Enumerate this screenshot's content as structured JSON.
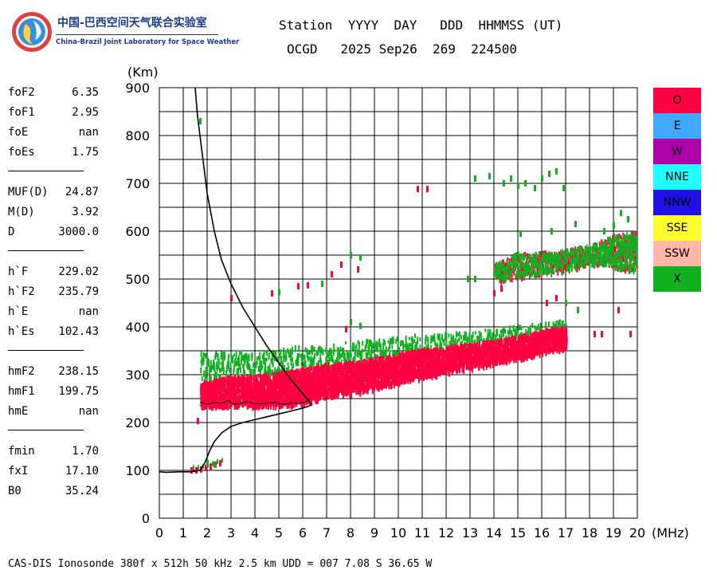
{
  "logo": {
    "cn_text": "中国-巴西空间天气联合实验室",
    "en_text": "China-Brazil Joint Laboratory for Space Weather"
  },
  "header": {
    "line1": "Station  YYYY  DAY   DDD  HHMMSS (UT)",
    "line2": "OCGD   2025 Sep26  269  224500"
  },
  "params": [
    {
      "label": "foF2",
      "value": "6.35"
    },
    {
      "label": "foF1",
      "value": "2.95"
    },
    {
      "label": "foE",
      "value": "nan"
    },
    {
      "label": "foEs",
      "value": "1.75"
    },
    {
      "sep": true
    },
    {
      "label": "MUF(D)",
      "value": "24.87"
    },
    {
      "label": "M(D)",
      "value": "3.92"
    },
    {
      "label": "D",
      "value": "3000.0"
    },
    {
      "sep": true
    },
    {
      "label": "h`F",
      "value": "229.02"
    },
    {
      "label": "h`F2",
      "value": "235.79"
    },
    {
      "label": "h`E",
      "value": "nan"
    },
    {
      "label": "h`Es",
      "value": "102.43"
    },
    {
      "sep": true
    },
    {
      "label": "hmF2",
      "value": "238.15"
    },
    {
      "label": "hmF1",
      "value": "199.75"
    },
    {
      "label": "hmE",
      "value": "nan"
    },
    {
      "sep": true
    },
    {
      "label": "fmin",
      "value": "1.70"
    },
    {
      "label": "fxI",
      "value": "17.10"
    },
    {
      "label": "B0",
      "value": "35.24"
    }
  ],
  "legend": [
    {
      "label": "O",
      "color": "#ff0040"
    },
    {
      "label": "E",
      "color": "#40a8ff"
    },
    {
      "label": "W",
      "color": "#b000a8"
    },
    {
      "label": "NNE",
      "color": "#20ffff"
    },
    {
      "label": "NNW",
      "color": "#2010e8"
    },
    {
      "label": "SSE",
      "color": "#ffff30"
    },
    {
      "label": "SSW",
      "color": "#ffb8a8"
    },
    {
      "label": "X",
      "color": "#10b020"
    }
  ],
  "footer": "CAS-DIS Ionosonde 380f x 512h 50 kHz 2.5 km UDD = 007 7.08 S 36.65 W",
  "chart_data": {
    "type": "scatter",
    "xlabel": "(MHz)",
    "ylabel": "(Km)",
    "xlim": [
      0,
      20
    ],
    "ylim": [
      0,
      900
    ],
    "x_ticks": [
      0,
      1,
      2,
      3,
      4,
      5,
      6,
      7,
      8,
      9,
      10,
      11,
      12,
      13,
      14,
      15,
      16,
      17,
      18,
      19,
      20
    ],
    "y_ticks": [
      0,
      100,
      200,
      300,
      400,
      500,
      600,
      700,
      800,
      900
    ],
    "grid": true,
    "legend_position": "right",
    "o_trace_band": [
      [
        1.7,
        240,
        285
      ],
      [
        2.0,
        240,
        290
      ],
      [
        2.5,
        238,
        295
      ],
      [
        3.0,
        238,
        300
      ],
      [
        3.5,
        238,
        300
      ],
      [
        4.0,
        238,
        302
      ],
      [
        4.5,
        238,
        305
      ],
      [
        5.0,
        240,
        308
      ],
      [
        5.5,
        242,
        312
      ],
      [
        6.0,
        246,
        316
      ],
      [
        6.5,
        252,
        322
      ],
      [
        7.0,
        258,
        326
      ],
      [
        7.5,
        262,
        328
      ],
      [
        8.0,
        266,
        330
      ],
      [
        8.5,
        270,
        334
      ],
      [
        9.0,
        276,
        338
      ],
      [
        9.5,
        282,
        342
      ],
      [
        10.0,
        288,
        348
      ],
      [
        10.5,
        294,
        352
      ],
      [
        11.0,
        300,
        356
      ],
      [
        11.5,
        304,
        358
      ],
      [
        12.0,
        310,
        362
      ],
      [
        12.5,
        315,
        366
      ],
      [
        13.0,
        318,
        368
      ],
      [
        13.5,
        323,
        372
      ],
      [
        14.0,
        328,
        376
      ],
      [
        14.5,
        333,
        380
      ],
      [
        15.0,
        338,
        386
      ],
      [
        15.5,
        343,
        390
      ],
      [
        16.0,
        350,
        396
      ],
      [
        16.5,
        356,
        400
      ],
      [
        17.0,
        360,
        404
      ]
    ],
    "x_trace_band": [
      [
        1.7,
        250,
        350
      ],
      [
        3.0,
        250,
        350
      ],
      [
        4.5,
        255,
        355
      ],
      [
        5.5,
        262,
        362
      ],
      [
        6.5,
        266,
        362
      ],
      [
        8.0,
        272,
        372
      ],
      [
        9.5,
        288,
        380
      ],
      [
        11.0,
        302,
        388
      ],
      [
        12.5,
        320,
        392
      ],
      [
        14.0,
        334,
        398
      ],
      [
        15.5,
        350,
        410
      ],
      [
        17.0,
        368,
        418
      ]
    ],
    "upper_trace": [
      [
        14.0,
        500,
        535
      ],
      [
        14.5,
        505,
        545
      ],
      [
        15.0,
        510,
        560
      ],
      [
        15.5,
        512,
        555
      ],
      [
        16.0,
        515,
        560
      ],
      [
        16.5,
        518,
        560
      ],
      [
        17.0,
        525,
        565
      ],
      [
        17.5,
        530,
        570
      ],
      [
        18.0,
        535,
        575
      ],
      [
        18.5,
        535,
        585
      ],
      [
        19.0,
        530,
        595
      ],
      [
        19.5,
        525,
        600
      ],
      [
        20.0,
        520,
        605
      ]
    ],
    "es_trace": [
      [
        1.3,
        100
      ],
      [
        1.5,
        100
      ],
      [
        1.7,
        102
      ],
      [
        1.9,
        105
      ],
      [
        2.1,
        108
      ],
      [
        2.3,
        112
      ],
      [
        2.5,
        115
      ]
    ],
    "scattered_points": [
      {
        "x": 1.7,
        "y": 830,
        "pol": "X"
      },
      {
        "x": 3.0,
        "y": 460,
        "pol": "O"
      },
      {
        "x": 4.7,
        "y": 470,
        "pol": "O"
      },
      {
        "x": 5.0,
        "y": 472,
        "pol": "X"
      },
      {
        "x": 5.8,
        "y": 485,
        "pol": "O"
      },
      {
        "x": 6.2,
        "y": 487,
        "pol": "O"
      },
      {
        "x": 6.8,
        "y": 490,
        "pol": "X"
      },
      {
        "x": 7.2,
        "y": 510,
        "pol": "O"
      },
      {
        "x": 7.6,
        "y": 530,
        "pol": "O"
      },
      {
        "x": 8.0,
        "y": 550,
        "pol": "X"
      },
      {
        "x": 8.4,
        "y": 545,
        "pol": "X"
      },
      {
        "x": 8.3,
        "y": 520,
        "pol": "O"
      },
      {
        "x": 8.0,
        "y": 410,
        "pol": "X"
      },
      {
        "x": 8.4,
        "y": 402,
        "pol": "X"
      },
      {
        "x": 7.8,
        "y": 395,
        "pol": "O"
      },
      {
        "x": 10.8,
        "y": 688,
        "pol": "O"
      },
      {
        "x": 11.2,
        "y": 688,
        "pol": "O"
      },
      {
        "x": 13.2,
        "y": 710,
        "pol": "X"
      },
      {
        "x": 13.8,
        "y": 715,
        "pol": "X"
      },
      {
        "x": 14.4,
        "y": 700,
        "pol": "X"
      },
      {
        "x": 14.7,
        "y": 710,
        "pol": "X"
      },
      {
        "x": 15.0,
        "y": 695,
        "pol": "X"
      },
      {
        "x": 15.3,
        "y": 700,
        "pol": "X"
      },
      {
        "x": 15.7,
        "y": 690,
        "pol": "X"
      },
      {
        "x": 16.0,
        "y": 710,
        "pol": "X"
      },
      {
        "x": 16.3,
        "y": 720,
        "pol": "X"
      },
      {
        "x": 16.6,
        "y": 725,
        "pol": "X"
      },
      {
        "x": 16.9,
        "y": 690,
        "pol": "X"
      },
      {
        "x": 12.9,
        "y": 500,
        "pol": "X"
      },
      {
        "x": 13.2,
        "y": 500,
        "pol": "X"
      },
      {
        "x": 14.0,
        "y": 470,
        "pol": "O"
      },
      {
        "x": 14.3,
        "y": 480,
        "pol": "O"
      },
      {
        "x": 15.1,
        "y": 595,
        "pol": "X"
      },
      {
        "x": 16.4,
        "y": 600,
        "pol": "X"
      },
      {
        "x": 17.4,
        "y": 615,
        "pol": "X"
      },
      {
        "x": 18.6,
        "y": 600,
        "pol": "X"
      },
      {
        "x": 19.0,
        "y": 612,
        "pol": "X"
      },
      {
        "x": 19.3,
        "y": 638,
        "pol": "X"
      },
      {
        "x": 19.6,
        "y": 625,
        "pol": "X"
      },
      {
        "x": 16.2,
        "y": 450,
        "pol": "O"
      },
      {
        "x": 16.6,
        "y": 460,
        "pol": "O"
      },
      {
        "x": 17.0,
        "y": 450,
        "pol": "X"
      },
      {
        "x": 17.5,
        "y": 435,
        "pol": "X"
      },
      {
        "x": 18.2,
        "y": 385,
        "pol": "O"
      },
      {
        "x": 18.5,
        "y": 385,
        "pol": "O"
      },
      {
        "x": 19.2,
        "y": 435,
        "pol": "O"
      },
      {
        "x": 19.7,
        "y": 385,
        "pol": "O"
      },
      {
        "x": 1.6,
        "y": 203,
        "pol": "O"
      },
      {
        "x": 2.0,
        "y": 115,
        "pol": "X"
      },
      {
        "x": 2.3,
        "y": 112,
        "pol": "X"
      }
    ],
    "profile_curve": [
      [
        0.0,
        97
      ],
      [
        0.3,
        96
      ],
      [
        0.8,
        97
      ],
      [
        1.3,
        97
      ],
      [
        1.7,
        100
      ],
      [
        1.9,
        115
      ],
      [
        2.1,
        140
      ],
      [
        2.3,
        160
      ],
      [
        2.6,
        178
      ],
      [
        3.0,
        192
      ],
      [
        3.5,
        200
      ],
      [
        4.0,
        206
      ],
      [
        4.5,
        212
      ],
      [
        5.0,
        218
      ],
      [
        5.5,
        224
      ],
      [
        6.0,
        230
      ],
      [
        6.3,
        235
      ],
      [
        6.35,
        238
      ],
      [
        6.1,
        255
      ],
      [
        5.5,
        290
      ],
      [
        4.5,
        360
      ],
      [
        4.0,
        400
      ],
      [
        3.5,
        440
      ],
      [
        3.0,
        490
      ],
      [
        2.6,
        540
      ],
      [
        2.3,
        600
      ],
      [
        2.0,
        680
      ],
      [
        1.8,
        760
      ],
      [
        1.6,
        840
      ],
      [
        1.5,
        900
      ]
    ],
    "virtual_height_curve": [
      [
        1.7,
        243
      ],
      [
        2.0,
        238
      ],
      [
        2.3,
        242
      ],
      [
        2.6,
        240
      ],
      [
        2.9,
        246
      ],
      [
        3.1,
        238
      ],
      [
        3.4,
        240
      ],
      [
        3.7,
        244
      ],
      [
        4.0,
        239
      ],
      [
        4.4,
        240
      ],
      [
        4.8,
        242
      ],
      [
        5.2,
        238
      ],
      [
        5.6,
        241
      ],
      [
        5.9,
        240
      ],
      [
        6.2,
        245
      ],
      [
        6.3,
        250
      ]
    ]
  }
}
